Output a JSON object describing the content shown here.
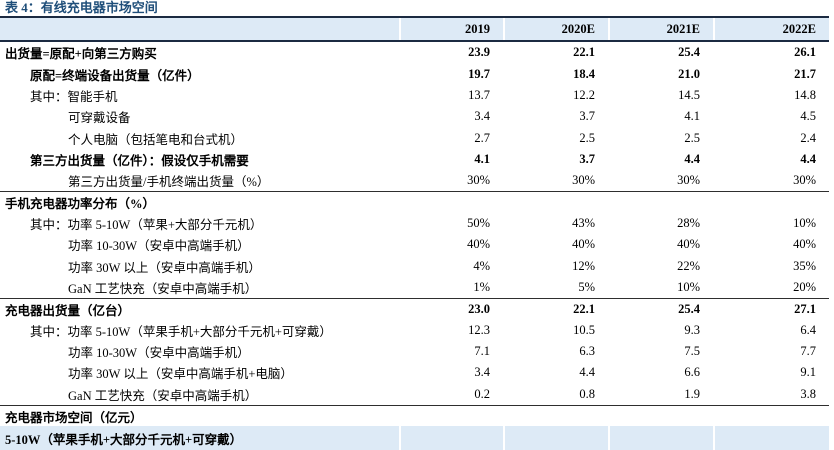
{
  "table_title": "表 4：有线充电器市场空间",
  "colors": {
    "title_blue": "#1F4E79",
    "header_bg_blue": "#DDEAF6",
    "highlight_bg_blue": "#DDEAF6",
    "border_dark": "#1b2a41"
  },
  "table": {
    "columns": [
      "2019",
      "2020E",
      "2021E",
      "2022E"
    ],
    "rows": [
      {
        "label": "出货量=原配+向第三方购买",
        "indent": 0,
        "bold": true,
        "highlight": false,
        "divider_before": false,
        "values": [
          "23.9",
          "22.1",
          "25.4",
          "26.1"
        ]
      },
      {
        "label": "原配=终端设备出货量（亿件）",
        "indent": 1,
        "bold": true,
        "highlight": false,
        "divider_before": false,
        "values": [
          "19.7",
          "18.4",
          "21.0",
          "21.7"
        ]
      },
      {
        "label": "其中：智能手机",
        "indent": 1,
        "bold": false,
        "highlight": false,
        "divider_before": false,
        "values": [
          "13.7",
          "12.2",
          "14.5",
          "14.8"
        ]
      },
      {
        "label": "可穿戴设备",
        "indent": 2,
        "bold": false,
        "highlight": false,
        "divider_before": false,
        "values": [
          "3.4",
          "3.7",
          "4.1",
          "4.5"
        ]
      },
      {
        "label": "个人电脑（包括笔电和台式机）",
        "indent": 2,
        "bold": false,
        "highlight": false,
        "divider_before": false,
        "values": [
          "2.7",
          "2.5",
          "2.5",
          "2.4"
        ]
      },
      {
        "label": "第三方出货量（亿件）：假设仅手机需要",
        "indent": 1,
        "bold": true,
        "highlight": false,
        "divider_before": false,
        "values": [
          "4.1",
          "3.7",
          "4.4",
          "4.4"
        ]
      },
      {
        "label": "第三方出货量/手机终端出货量（%）",
        "indent": 2,
        "bold": false,
        "highlight": false,
        "divider_before": false,
        "values": [
          "30%",
          "30%",
          "30%",
          "30%"
        ]
      },
      {
        "label": "手机充电器功率分布（%）",
        "indent": 0,
        "bold": true,
        "highlight": false,
        "divider_before": true,
        "values": [
          "",
          "",
          "",
          ""
        ]
      },
      {
        "label": "其中：功率 5-10W（苹果+大部分千元机）",
        "indent": 1,
        "bold": false,
        "highlight": false,
        "divider_before": false,
        "values": [
          "50%",
          "43%",
          "28%",
          "10%"
        ]
      },
      {
        "label": "功率 10-30W（安卓中高端手机）",
        "indent": 2,
        "bold": false,
        "highlight": false,
        "divider_before": false,
        "values": [
          "40%",
          "40%",
          "40%",
          "40%"
        ]
      },
      {
        "label": "功率 30W 以上（安卓中高端手机）",
        "indent": 2,
        "bold": false,
        "highlight": false,
        "divider_before": false,
        "values": [
          "4%",
          "12%",
          "22%",
          "35%"
        ]
      },
      {
        "label": "GaN 工艺快充（安卓中高端手机）",
        "indent": 2,
        "bold": false,
        "highlight": false,
        "divider_before": false,
        "values": [
          "1%",
          "5%",
          "10%",
          "20%"
        ]
      },
      {
        "label": "充电器出货量（亿台）",
        "indent": 0,
        "bold": true,
        "highlight": false,
        "divider_before": true,
        "values": [
          "23.0",
          "22.1",
          "25.4",
          "27.1"
        ]
      },
      {
        "label": "其中：功率 5-10W（苹果手机+大部分千元机+可穿戴）",
        "indent": 1,
        "bold": false,
        "highlight": false,
        "divider_before": false,
        "values": [
          "12.3",
          "10.5",
          "9.3",
          "6.4"
        ]
      },
      {
        "label": "功率 10-30W（安卓中高端手机）",
        "indent": 2,
        "bold": false,
        "highlight": false,
        "divider_before": false,
        "values": [
          "7.1",
          "6.3",
          "7.5",
          "7.7"
        ]
      },
      {
        "label": "功率 30W 以上（安卓中高端手机+电脑）",
        "indent": 2,
        "bold": false,
        "highlight": false,
        "divider_before": false,
        "values": [
          "3.4",
          "4.4",
          "6.6",
          "9.1"
        ]
      },
      {
        "label": "GaN 工艺快充（安卓中高端手机）",
        "indent": 2,
        "bold": false,
        "highlight": false,
        "divider_before": false,
        "values": [
          "0.2",
          "0.8",
          "1.9",
          "3.8"
        ]
      },
      {
        "label": "充电器市场空间（亿元）",
        "indent": 0,
        "bold": true,
        "highlight": false,
        "divider_before": true,
        "values": [
          "",
          "",
          "",
          ""
        ]
      },
      {
        "label": "5-10W（苹果手机+大部分千元机+可穿戴）",
        "indent": 0,
        "bold": true,
        "highlight": true,
        "divider_before": false,
        "values": [
          "",
          "",
          "",
          ""
        ]
      }
    ]
  }
}
